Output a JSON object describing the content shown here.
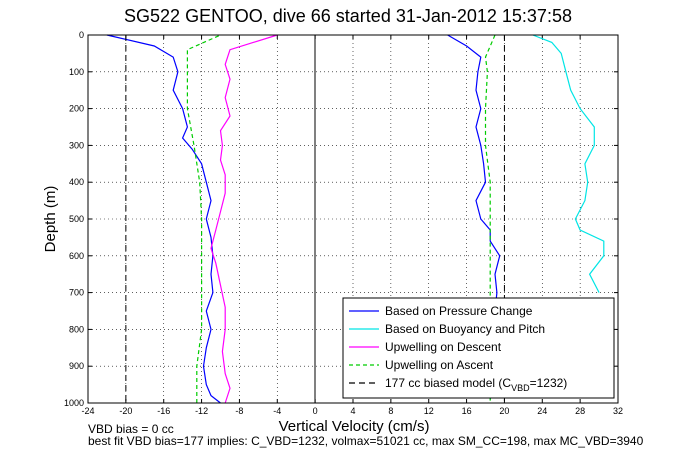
{
  "chart_data": {
    "type": "line",
    "title": "SG522 GENTOO, dive 66 started 31-Jan-2012 15:37:58",
    "xlabel": "Vertical Velocity (cm/s)",
    "ylabel": "Depth (m)",
    "xlim": [
      -24,
      32
    ],
    "ylim": [
      0,
      1000
    ],
    "y_reversed": true,
    "grid": true,
    "x_ticks": [
      "-24",
      "-20",
      "-16",
      "-12",
      "-8",
      "-4",
      "0",
      "4",
      "8",
      "12",
      "16",
      "20",
      "24",
      "28",
      "32"
    ],
    "y_ticks": [
      "0",
      "100",
      "200",
      "300",
      "400",
      "500",
      "600",
      "700",
      "800",
      "900",
      "1000"
    ],
    "legend_position": "bottom-right",
    "series": [
      {
        "name": "Based on Pressure Change",
        "color": "#0000ff",
        "dash": "solid",
        "points": [
          [
            -22,
            0
          ],
          [
            -17,
            30
          ],
          [
            -15,
            60
          ],
          [
            -14.5,
            100
          ],
          [
            -15,
            150
          ],
          [
            -14,
            200
          ],
          [
            -13.5,
            250
          ],
          [
            -14,
            280
          ],
          [
            -13,
            310
          ],
          [
            -12,
            350
          ],
          [
            -11.5,
            400
          ],
          [
            -11,
            450
          ],
          [
            -11.5,
            500
          ],
          [
            -11,
            550
          ],
          [
            -10.8,
            600
          ],
          [
            -11,
            650
          ],
          [
            -10.8,
            700
          ],
          [
            -11.5,
            750
          ],
          [
            -11,
            800
          ],
          [
            -11.5,
            850
          ],
          [
            -11.8,
            900
          ],
          [
            -11.5,
            950
          ],
          [
            -11,
            980
          ],
          [
            -10,
            1000
          ],
          [
            3,
            1000
          ],
          [
            18.5,
            990
          ],
          [
            18.8,
            950
          ],
          [
            18.5,
            900
          ],
          [
            18.6,
            850
          ],
          [
            18.8,
            800
          ],
          [
            19,
            750
          ],
          [
            19.2,
            700
          ],
          [
            19,
            650
          ],
          [
            19.5,
            600
          ],
          [
            18.5,
            560
          ],
          [
            18.5,
            530
          ],
          [
            17.5,
            500
          ],
          [
            17,
            450
          ],
          [
            18,
            400
          ],
          [
            17.8,
            350
          ],
          [
            17.5,
            300
          ],
          [
            17,
            250
          ],
          [
            17.5,
            200
          ],
          [
            17,
            150
          ],
          [
            17.2,
            100
          ],
          [
            17.5,
            60
          ],
          [
            16,
            30
          ],
          [
            14,
            0
          ]
        ]
      },
      {
        "name": "Based on Buoyancy and Pitch",
        "color": "#00e5e5",
        "dash": "solid",
        "points": [
          [
            23,
            0
          ],
          [
            25,
            20
          ],
          [
            26,
            50
          ],
          [
            26.5,
            100
          ],
          [
            27,
            150
          ],
          [
            28,
            200
          ],
          [
            29.5,
            250
          ],
          [
            29.5,
            300
          ],
          [
            28.5,
            350
          ],
          [
            28.8,
            400
          ],
          [
            28.5,
            450
          ],
          [
            27.5,
            500
          ],
          [
            28,
            530
          ],
          [
            30.5,
            560
          ],
          [
            30.5,
            600
          ],
          [
            29,
            650
          ],
          [
            30,
            700
          ]
        ]
      },
      {
        "name": "Upwelling on Descent",
        "color": "#ff00ff",
        "dash": "solid",
        "points": [
          [
            -4,
            0
          ],
          [
            -9,
            40
          ],
          [
            -9.5,
            80
          ],
          [
            -9,
            120
          ],
          [
            -9.5,
            170
          ],
          [
            -9,
            220
          ],
          [
            -10,
            260
          ],
          [
            -9.8,
            300
          ],
          [
            -10,
            340
          ],
          [
            -9.5,
            380
          ],
          [
            -9.5,
            430
          ],
          [
            -10,
            480
          ],
          [
            -10.5,
            530
          ],
          [
            -11,
            580
          ],
          [
            -10.5,
            620
          ],
          [
            -10,
            680
          ],
          [
            -9.5,
            740
          ],
          [
            -9.5,
            800
          ],
          [
            -9.8,
            860
          ],
          [
            -9.5,
            920
          ],
          [
            -9,
            960
          ],
          [
            -9.5,
            1000
          ]
        ]
      },
      {
        "name": "Upwelling on Ascent",
        "color": "#00cc00",
        "dash": "dashed",
        "points": [
          [
            -12.5,
            1000
          ],
          [
            -12.5,
            900
          ],
          [
            -12,
            800
          ],
          [
            -12,
            700
          ],
          [
            -12,
            600
          ],
          [
            -12,
            500
          ],
          [
            -12.2,
            400
          ],
          [
            -12.8,
            300
          ],
          [
            -13.5,
            200
          ],
          [
            -13.5,
            100
          ],
          [
            -13.5,
            40
          ],
          [
            -10,
            0
          ],
          [
            19,
            0
          ],
          [
            18,
            60
          ],
          [
            18.2,
            100
          ],
          [
            18,
            200
          ],
          [
            18,
            300
          ],
          [
            18.5,
            400
          ],
          [
            18.5,
            500
          ],
          [
            18.5,
            600
          ],
          [
            18.5,
            700
          ],
          [
            18.5,
            800
          ],
          [
            18.5,
            900
          ],
          [
            18.5,
            1000
          ]
        ]
      },
      {
        "name": "177 cc biased model (C_VBD=1232)",
        "color": "#000000",
        "dash": "longdash",
        "lines": [
          [
            [
              -20,
              0
            ],
            [
              -20,
              1000
            ]
          ],
          [
            [
              20,
              0
            ],
            [
              20,
              1000
            ]
          ]
        ]
      }
    ],
    "annotations": [
      "VBD bias = 0 cc",
      "best fit VBD bias=177 implies: C_VBD=1232, volmax=51021 cc, max SM_CC=198, max MC_VBD=3940"
    ]
  },
  "legend": {
    "items": [
      {
        "label": "Based on Pressure Change",
        "color": "#0000ff",
        "dash": "solid"
      },
      {
        "label": "Based on Buoyancy and Pitch",
        "color": "#00e5e5",
        "dash": "solid"
      },
      {
        "label": "Upwelling on Descent",
        "color": "#ff00ff",
        "dash": "solid"
      },
      {
        "label": "Upwelling on Ascent",
        "color": "#00cc00",
        "dash": "dashed"
      }
    ],
    "model": {
      "prefix": "177 cc biased model (C",
      "sub": "VBD",
      "suffix": "=1232)",
      "color": "#000000"
    }
  },
  "footnotes": {
    "line1": "VBD bias = 0 cc",
    "line2": "best fit VBD bias=177 implies: C_VBD=1232, volmax=51021 cc, max SM_CC=198, max MC_VBD=3940"
  }
}
